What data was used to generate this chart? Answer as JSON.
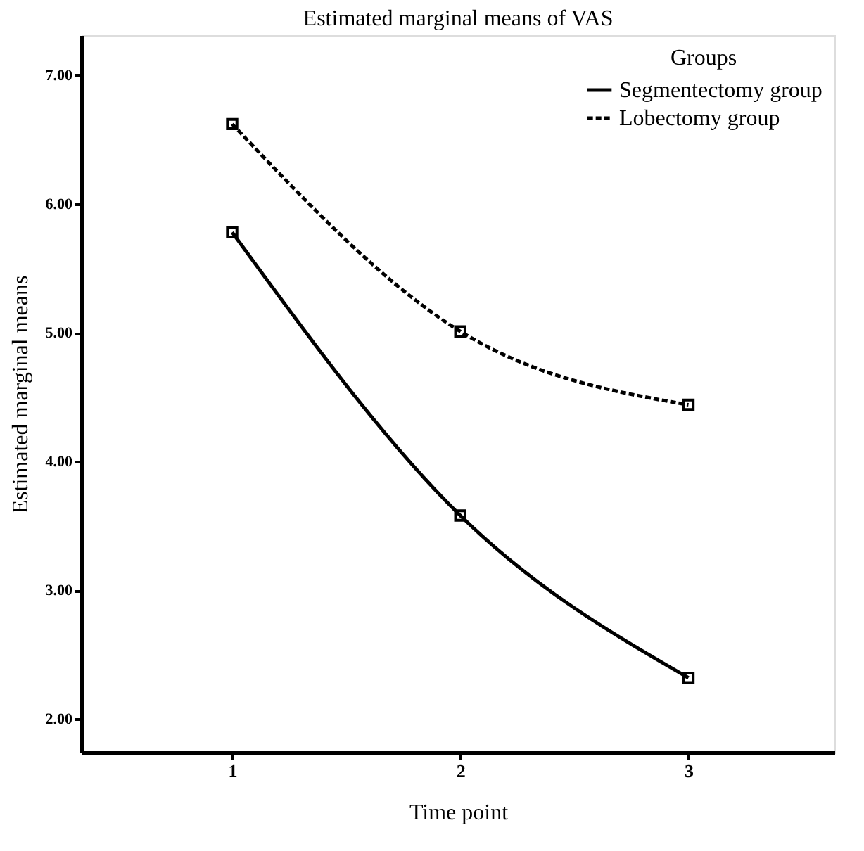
{
  "chart_data": {
    "type": "line",
    "title": "Estimated marginal means of VAS",
    "xlabel": "Time point",
    "ylabel": "Estimated marginal means",
    "legend_title": "Groups",
    "x": [
      1,
      2,
      3
    ],
    "series": [
      {
        "name": "Segmentectomy group",
        "color": "#000000",
        "line_style": "solid",
        "values": [
          5.78,
          3.58,
          2.32
        ]
      },
      {
        "name": "Lobectomy group",
        "color": "#000000",
        "line_style": "dashed",
        "values": [
          6.62,
          5.01,
          4.44
        ]
      }
    ],
    "xlim": [
      0.34,
      3.64
    ],
    "xticks": [
      1,
      2,
      3
    ],
    "ylim": [
      1.74,
      7.31
    ],
    "yticks": [
      {
        "value": 2,
        "label": "2.00"
      },
      {
        "value": 3,
        "label": "3.00"
      },
      {
        "value": 4,
        "label": "4.00"
      },
      {
        "value": 5,
        "label": "5.00"
      },
      {
        "value": 6,
        "label": "6.00"
      },
      {
        "value": 7,
        "label": "7.00"
      }
    ],
    "grid": false,
    "legend": "top right",
    "marker": "square"
  }
}
